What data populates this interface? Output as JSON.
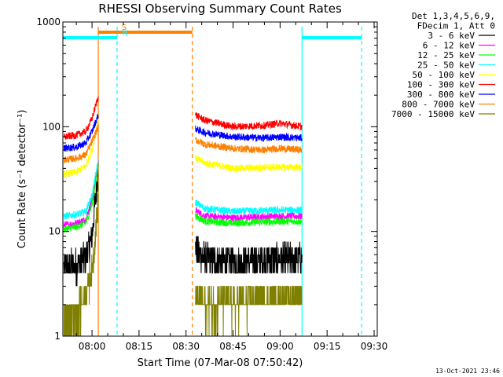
{
  "chart_data": {
    "type": "line",
    "title": "RHESSI Observing Summary Count Rates",
    "xlabel": "Start Time (07-Mar-08 07:50:42)",
    "ylabel": "Count Rate (s⁻¹ detector⁻¹)",
    "yscale": "log",
    "ylim": [
      1,
      1000
    ],
    "xlim": [
      "07:50:42",
      "09:31:00"
    ],
    "x_ticks": [
      "08:00",
      "08:15",
      "08:30",
      "08:45",
      "09:00",
      "09:15",
      "09:30"
    ],
    "y_ticks": [
      "1",
      "10",
      "100",
      "1000"
    ],
    "legend_header": [
      "Det 1,3,4,5,6,9,",
      "FDecim 1, Att 0"
    ],
    "legend_position": "right",
    "data_gap": [
      "08:02:00",
      "08:33:00"
    ],
    "series": [
      {
        "name": "3 - 6 keV",
        "color": "#000000",
        "seg1": [
          [
            "07:51",
            4.5
          ],
          [
            "07:55",
            4.8
          ],
          [
            "07:58",
            5.5
          ],
          [
            "08:00",
            9
          ],
          [
            "08:02",
            40
          ]
        ],
        "seg2": [
          [
            "08:33",
            7
          ],
          [
            "08:36",
            5.5
          ],
          [
            "08:45",
            5
          ],
          [
            "09:00",
            5.5
          ],
          [
            "09:07",
            5.5
          ]
        ]
      },
      {
        "name": "6 - 12 keV",
        "color": "#ff00ff",
        "seg1": [
          [
            "07:51",
            11.5
          ],
          [
            "07:55",
            12
          ],
          [
            "07:58",
            13
          ],
          [
            "08:00",
            20
          ],
          [
            "08:02",
            45
          ]
        ],
        "seg2": [
          [
            "08:33",
            16
          ],
          [
            "08:36",
            14
          ],
          [
            "08:45",
            13.5
          ],
          [
            "09:00",
            14
          ],
          [
            "09:07",
            14
          ]
        ]
      },
      {
        "name": "12 - 25 keV",
        "color": "#00ff00",
        "seg1": [
          [
            "07:51",
            10.5
          ],
          [
            "07:55",
            11
          ],
          [
            "07:58",
            12
          ],
          [
            "08:00",
            18
          ],
          [
            "08:02",
            42
          ]
        ],
        "seg2": [
          [
            "08:33",
            14
          ],
          [
            "08:36",
            12.5
          ],
          [
            "08:45",
            12
          ],
          [
            "09:00",
            12.5
          ],
          [
            "09:07",
            12.5
          ]
        ]
      },
      {
        "name": "25 - 50 keV",
        "color": "#00ffff",
        "seg1": [
          [
            "07:51",
            14
          ],
          [
            "07:55",
            14.5
          ],
          [
            "07:58",
            15.5
          ],
          [
            "08:00",
            22
          ],
          [
            "08:02",
            48
          ]
        ],
        "seg2": [
          [
            "08:33",
            19
          ],
          [
            "08:36",
            16.5
          ],
          [
            "08:45",
            15.5
          ],
          [
            "09:00",
            16
          ],
          [
            "09:07",
            16
          ]
        ]
      },
      {
        "name": "50 - 100 keV",
        "color": "#ffff00",
        "seg1": [
          [
            "07:51",
            35
          ],
          [
            "07:55",
            37
          ],
          [
            "07:58",
            42
          ],
          [
            "08:00",
            60
          ],
          [
            "08:02",
            120
          ]
        ],
        "seg2": [
          [
            "08:33",
            50
          ],
          [
            "08:36",
            45
          ],
          [
            "08:45",
            40
          ],
          [
            "09:00",
            41
          ],
          [
            "09:07",
            41
          ]
        ]
      },
      {
        "name": "100 - 300 keV",
        "color": "#ff0000",
        "seg1": [
          [
            "07:51",
            80
          ],
          [
            "07:55",
            83
          ],
          [
            "07:58",
            90
          ],
          [
            "08:00",
            120
          ],
          [
            "08:02",
            195
          ]
        ],
        "seg2": [
          [
            "08:33",
            130
          ],
          [
            "08:36",
            115
          ],
          [
            "08:45",
            100
          ],
          [
            "08:55",
            103
          ],
          [
            "09:00",
            108
          ],
          [
            "09:07",
            100
          ]
        ]
      },
      {
        "name": "300 - 800 keV",
        "color": "#0000ff",
        "seg1": [
          [
            "07:51",
            62
          ],
          [
            "07:55",
            64
          ],
          [
            "07:58",
            70
          ],
          [
            "08:00",
            90
          ],
          [
            "08:02",
            130
          ]
        ],
        "seg2": [
          [
            "08:33",
            95
          ],
          [
            "08:36",
            88
          ],
          [
            "08:45",
            80
          ],
          [
            "08:55",
            78
          ],
          [
            "09:00",
            80
          ],
          [
            "09:07",
            78
          ]
        ]
      },
      {
        "name": "800 - 7000 keV",
        "color": "#ff8000",
        "seg1": [
          [
            "07:51",
            48
          ],
          [
            "07:55",
            50
          ],
          [
            "07:58",
            54
          ],
          [
            "08:00",
            72
          ],
          [
            "08:02",
            100
          ]
        ],
        "seg2": [
          [
            "08:33",
            75
          ],
          [
            "08:36",
            68
          ],
          [
            "08:45",
            62
          ],
          [
            "08:55",
            60
          ],
          [
            "09:00",
            62
          ],
          [
            "09:07",
            60
          ]
        ]
      },
      {
        "name": "7000 - 15000 keV",
        "color": "#808000",
        "seg1": [
          [
            "07:51",
            1.5
          ],
          [
            "07:55",
            1.6
          ],
          [
            "07:58",
            2.5
          ],
          [
            "08:00",
            4
          ],
          [
            "08:02",
            20
          ]
        ],
        "seg2": [
          [
            "08:33",
            2.5
          ],
          [
            "08:36",
            2
          ],
          [
            "08:45",
            2
          ],
          [
            "09:00",
            2.3
          ],
          [
            "09:07",
            2.5
          ]
        ]
      }
    ],
    "flag_bars": [
      {
        "label": "S",
        "color": "#ff8000",
        "start": "08:02:00",
        "end": "08:32:00"
      },
      {
        "label": "N",
        "color": "#00ffff",
        "start": "07:50:42",
        "end": "08:08:00"
      },
      {
        "label": "",
        "color": "#00ffff",
        "start": "09:07:00",
        "end": "09:26:00"
      }
    ],
    "vertical_markers": [
      {
        "time": "08:02:00",
        "color": "#ff8000",
        "style": "solid"
      },
      {
        "time": "08:32:00",
        "color": "#ff8000",
        "style": "dashed"
      },
      {
        "time": "08:08:00",
        "color": "#00ffff",
        "style": "dashed"
      },
      {
        "time": "09:07:00",
        "color": "#00ffff",
        "style": "solid"
      },
      {
        "time": "09:26:00",
        "color": "#00ffff",
        "style": "dashed"
      }
    ],
    "timestamp": "13-Oct-2021 23:46"
  }
}
